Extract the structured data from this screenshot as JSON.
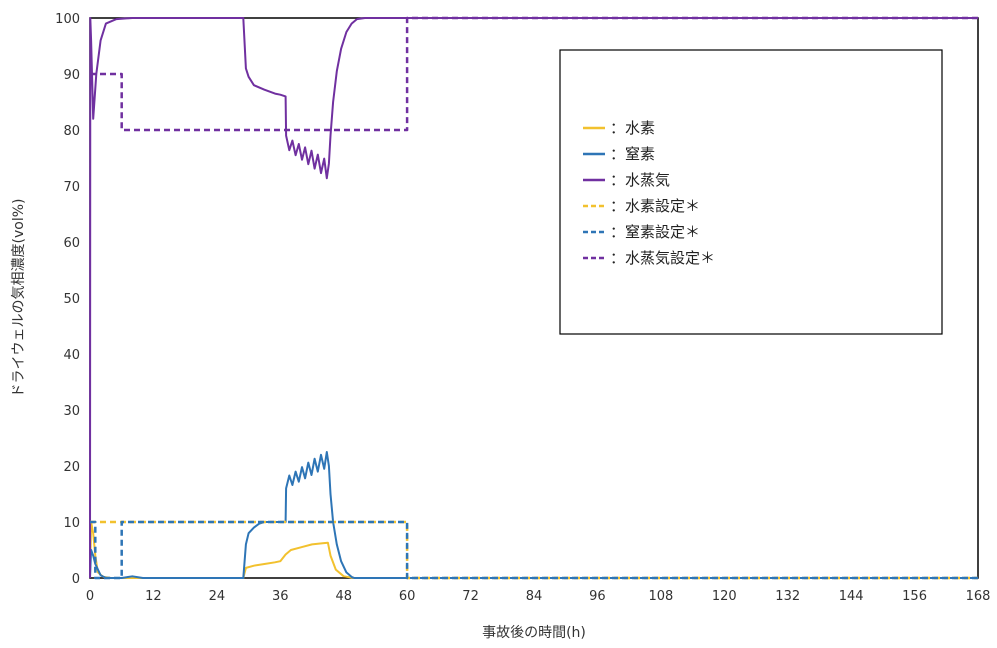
{
  "chart_data": {
    "type": "line",
    "title": "",
    "xlabel": "事故後の時間(h)",
    "ylabel": "ドライウェルの気相濃度(vol%)",
    "xlim": [
      0,
      168
    ],
    "ylim": [
      0,
      100
    ],
    "xticks": [
      0,
      12,
      24,
      36,
      48,
      60,
      72,
      84,
      96,
      108,
      120,
      132,
      144,
      156,
      168
    ],
    "yticks": [
      0,
      10,
      20,
      30,
      40,
      50,
      60,
      70,
      80,
      90,
      100
    ],
    "grid": false,
    "legend_position": "top-right",
    "legend": [
      {
        "label": "：水素",
        "color": "#f2c12e",
        "dash": false
      },
      {
        "label": "：窒素",
        "color": "#2e75b6",
        "dash": false
      },
      {
        "label": "：水蒸気",
        "color": "#7030a0",
        "dash": false
      },
      {
        "label": "：水素設定＊",
        "color": "#f2c12e",
        "dash": true
      },
      {
        "label": "：窒素設定＊",
        "color": "#2e75b6",
        "dash": true
      },
      {
        "label": "：水蒸気設定＊",
        "color": "#7030a0",
        "dash": true
      }
    ],
    "series": [
      {
        "name": "水素",
        "color": "#f2c12e",
        "dash": false,
        "width": 2,
        "points": [
          [
            0,
            0
          ],
          [
            0.2,
            10
          ],
          [
            0.6,
            8
          ],
          [
            1,
            4
          ],
          [
            1.5,
            1
          ],
          [
            2.5,
            0.2
          ],
          [
            4,
            0
          ],
          [
            29,
            0
          ],
          [
            29.5,
            1.8
          ],
          [
            31,
            2.2
          ],
          [
            33,
            2.5
          ],
          [
            35,
            2.8
          ],
          [
            36,
            3
          ],
          [
            37,
            4.2
          ],
          [
            38,
            5
          ],
          [
            40,
            5.5
          ],
          [
            42,
            6
          ],
          [
            44,
            6.2
          ],
          [
            45,
            6.3
          ],
          [
            45.5,
            4
          ],
          [
            46.5,
            1.5
          ],
          [
            48,
            0.3
          ],
          [
            50,
            0
          ],
          [
            168,
            0
          ]
        ]
      },
      {
        "name": "窒素",
        "color": "#2e75b6",
        "dash": false,
        "width": 2,
        "points": [
          [
            0,
            0
          ],
          [
            0.2,
            5
          ],
          [
            0.6,
            4
          ],
          [
            1,
            2.5
          ],
          [
            2,
            0.5
          ],
          [
            3,
            0
          ],
          [
            6,
            0
          ],
          [
            8,
            0.3
          ],
          [
            10,
            0
          ],
          [
            29,
            0
          ],
          [
            29.5,
            6
          ],
          [
            30,
            8
          ],
          [
            31,
            9
          ],
          [
            32,
            9.7
          ],
          [
            33,
            10
          ],
          [
            34,
            10
          ],
          [
            36,
            10
          ],
          [
            37,
            10
          ],
          [
            37.1,
            16
          ],
          [
            37.7,
            18.3
          ],
          [
            38.3,
            16.6
          ],
          [
            38.9,
            19
          ],
          [
            39.5,
            17.2
          ],
          [
            40.1,
            19.8
          ],
          [
            40.7,
            17.8
          ],
          [
            41.3,
            20.6
          ],
          [
            41.9,
            18.4
          ],
          [
            42.5,
            21.3
          ],
          [
            43.1,
            19
          ],
          [
            43.7,
            22
          ],
          [
            44.3,
            19.5
          ],
          [
            44.8,
            22.5
          ],
          [
            45.2,
            20
          ],
          [
            45.5,
            15
          ],
          [
            46,
            10
          ],
          [
            46.7,
            6
          ],
          [
            47.5,
            3
          ],
          [
            48.5,
            1
          ],
          [
            49.5,
            0.2
          ],
          [
            50,
            0
          ],
          [
            168,
            0
          ]
        ]
      },
      {
        "name": "水蒸気",
        "color": "#7030a0",
        "dash": false,
        "width": 2,
        "points": [
          [
            0,
            0
          ],
          [
            0.05,
            100
          ],
          [
            0.2,
            96
          ],
          [
            0.6,
            82
          ],
          [
            1.2,
            90
          ],
          [
            2,
            96
          ],
          [
            3,
            99
          ],
          [
            5,
            99.8
          ],
          [
            8,
            100
          ],
          [
            29,
            100
          ],
          [
            29.5,
            91
          ],
          [
            30,
            89.5
          ],
          [
            31,
            88
          ],
          [
            33,
            87.2
          ],
          [
            35,
            86.5
          ],
          [
            36,
            86.3
          ],
          [
            37,
            86
          ],
          [
            37.1,
            79
          ],
          [
            37.7,
            76.4
          ],
          [
            38.3,
            78.1
          ],
          [
            38.9,
            75.5
          ],
          [
            39.5,
            77.5
          ],
          [
            40.1,
            74.7
          ],
          [
            40.7,
            76.9
          ],
          [
            41.3,
            73.9
          ],
          [
            41.9,
            76.3
          ],
          [
            42.5,
            73.1
          ],
          [
            43.1,
            75.6
          ],
          [
            43.7,
            72.3
          ],
          [
            44.3,
            74.9
          ],
          [
            44.8,
            71.4
          ],
          [
            45.2,
            74
          ],
          [
            45.5,
            79
          ],
          [
            46,
            85
          ],
          [
            46.7,
            90.5
          ],
          [
            47.5,
            94.5
          ],
          [
            48.5,
            97.5
          ],
          [
            49.5,
            99
          ],
          [
            50.5,
            99.8
          ],
          [
            52,
            100
          ],
          [
            168,
            100
          ]
        ]
      },
      {
        "name": "水素設定＊",
        "color": "#f2c12e",
        "dash": true,
        "width": 2.5,
        "points": [
          [
            0,
            10
          ],
          [
            60,
            10
          ],
          [
            60,
            0
          ],
          [
            168,
            0
          ]
        ]
      },
      {
        "name": "窒素設定＊",
        "color": "#2e75b6",
        "dash": true,
        "width": 2.5,
        "points": [
          [
            0,
            10
          ],
          [
            1,
            10
          ],
          [
            1,
            0
          ],
          [
            6,
            0
          ],
          [
            6,
            10
          ],
          [
            60,
            10
          ],
          [
            60,
            0
          ],
          [
            168,
            0
          ]
        ]
      },
      {
        "name": "水蒸気設定＊",
        "color": "#7030a0",
        "dash": true,
        "width": 2.5,
        "points": [
          [
            0,
            90
          ],
          [
            6,
            90
          ],
          [
            6,
            80
          ],
          [
            60,
            80
          ],
          [
            60,
            100
          ],
          [
            168,
            100
          ]
        ]
      }
    ]
  }
}
